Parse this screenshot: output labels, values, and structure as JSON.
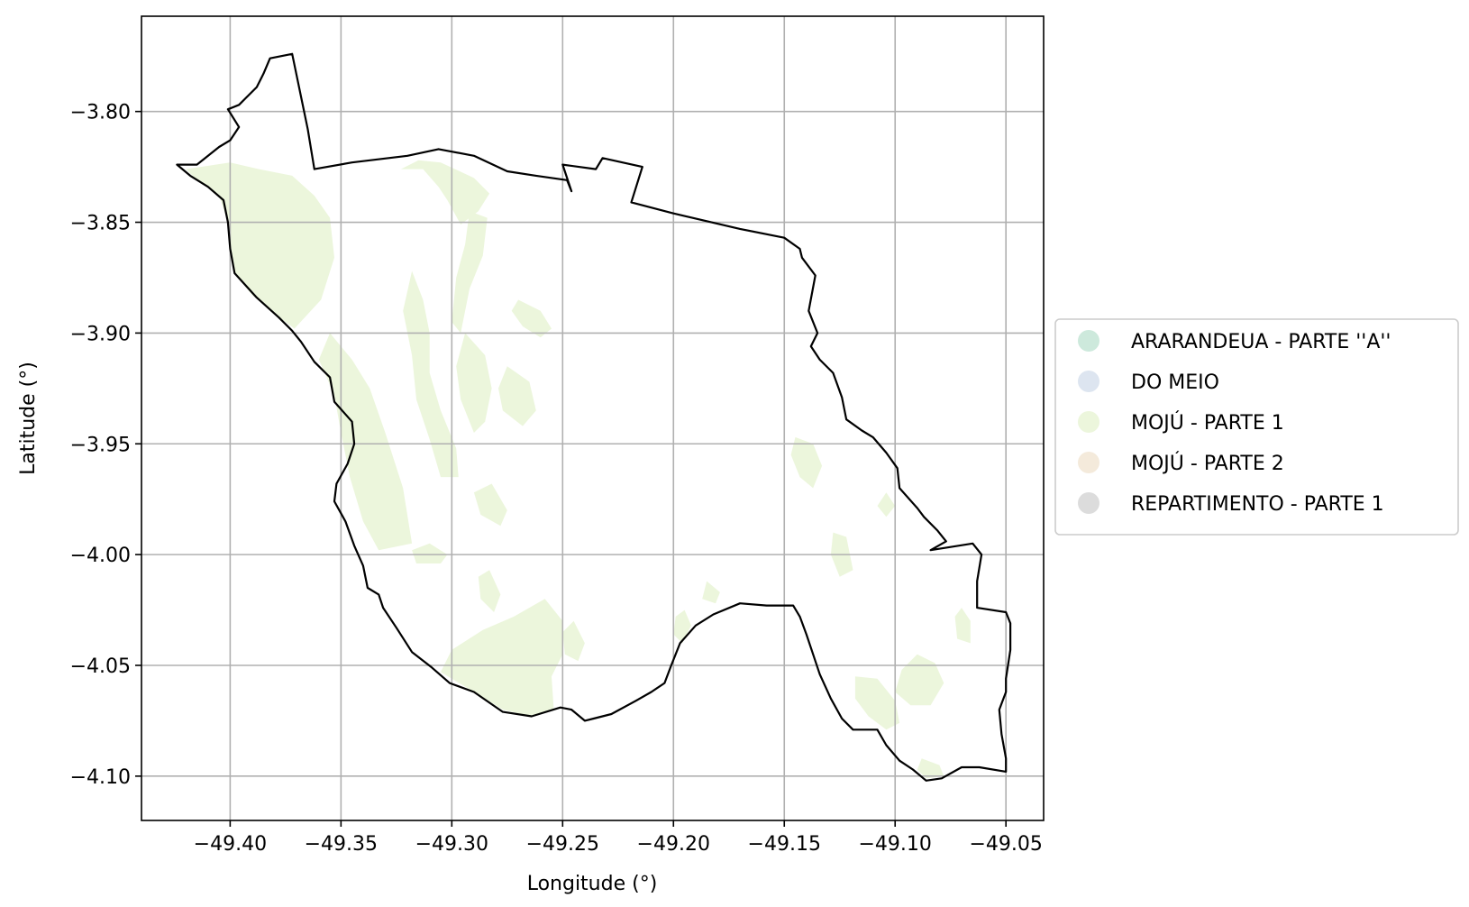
{
  "chart_data": {
    "type": "map",
    "xlabel": "Longitude (°)",
    "ylabel": "Latitude (°)",
    "xlim": [
      -49.44,
      -49.033
    ],
    "ylim": [
      -4.12,
      -3.757
    ],
    "x_ticks": [
      -49.4,
      -49.35,
      -49.3,
      -49.25,
      -49.2,
      -49.15,
      -49.1,
      -49.05
    ],
    "y_ticks": [
      -3.8,
      -3.85,
      -3.9,
      -3.95,
      -4.0,
      -4.05,
      -4.1
    ],
    "x_tick_labels": [
      "−49.40",
      "−49.35",
      "−49.30",
      "−49.25",
      "−49.20",
      "−49.15",
      "−49.10",
      "−49.05"
    ],
    "y_tick_labels": [
      "−3.80",
      "−3.85",
      "−3.90",
      "−3.95",
      "−4.00",
      "−4.05",
      "−4.10"
    ],
    "grid": true,
    "legend_position": "right",
    "legend": [
      {
        "label": "ARARANDEUA - PARTE ''A''",
        "color": "#cde9dc"
      },
      {
        "label": "DO MEIO",
        "color": "#dde5f0"
      },
      {
        "label": "MOJÚ - PARTE 1",
        "color": "#ecf6dc"
      },
      {
        "label": "MOJÚ - PARTE 2",
        "color": "#f4eadb"
      },
      {
        "label": "REPARTIMENTO - PARTE 1",
        "color": "#dcdcdc"
      }
    ],
    "boundary": [
      [
        -49.424,
        -3.824
      ],
      [
        -49.415,
        -3.824
      ],
      [
        -49.405,
        -3.816
      ],
      [
        -49.4,
        -3.813
      ],
      [
        -49.396,
        -3.807
      ],
      [
        -49.401,
        -3.799
      ],
      [
        -49.396,
        -3.797
      ],
      [
        -49.393,
        -3.794
      ],
      [
        -49.388,
        -3.789
      ],
      [
        -49.385,
        -3.783
      ],
      [
        -49.382,
        -3.776
      ],
      [
        -49.372,
        -3.774
      ],
      [
        -49.365,
        -3.808
      ],
      [
        -49.362,
        -3.826
      ],
      [
        -49.345,
        -3.823
      ],
      [
        -49.32,
        -3.82
      ],
      [
        -49.306,
        -3.817
      ],
      [
        -49.29,
        -3.82
      ],
      [
        -49.275,
        -3.827
      ],
      [
        -49.262,
        -3.829
      ],
      [
        -49.248,
        -3.831
      ],
      [
        -49.246,
        -3.836
      ],
      [
        -49.25,
        -3.824
      ],
      [
        -49.235,
        -3.826
      ],
      [
        -49.232,
        -3.821
      ],
      [
        -49.214,
        -3.825
      ],
      [
        -49.219,
        -3.841
      ],
      [
        -49.2,
        -3.846
      ],
      [
        -49.17,
        -3.853
      ],
      [
        -49.15,
        -3.857
      ],
      [
        -49.143,
        -3.862
      ],
      [
        -49.142,
        -3.866
      ],
      [
        -49.136,
        -3.874
      ],
      [
        -49.139,
        -3.89
      ],
      [
        -49.135,
        -3.9
      ],
      [
        -49.138,
        -3.906
      ],
      [
        -49.134,
        -3.912
      ],
      [
        -49.128,
        -3.918
      ],
      [
        -49.124,
        -3.929
      ],
      [
        -49.122,
        -3.939
      ],
      [
        -49.115,
        -3.944
      ],
      [
        -49.11,
        -3.947
      ],
      [
        -49.104,
        -3.954
      ],
      [
        -49.099,
        -3.961
      ],
      [
        -49.098,
        -3.97
      ],
      [
        -49.09,
        -3.979
      ],
      [
        -49.087,
        -3.983
      ],
      [
        -49.081,
        -3.989
      ],
      [
        -49.077,
        -3.994
      ],
      [
        -49.084,
        -3.998
      ],
      [
        -49.065,
        -3.995
      ],
      [
        -49.061,
        -4.0
      ],
      [
        -49.063,
        -4.012
      ],
      [
        -49.063,
        -4.024
      ],
      [
        -49.05,
        -4.026
      ],
      [
        -49.048,
        -4.031
      ],
      [
        -49.048,
        -4.043
      ],
      [
        -49.05,
        -4.056
      ],
      [
        -49.05,
        -4.062
      ],
      [
        -49.053,
        -4.07
      ],
      [
        -49.052,
        -4.081
      ],
      [
        -49.05,
        -4.092
      ],
      [
        -49.05,
        -4.098
      ],
      [
        -49.062,
        -4.096
      ],
      [
        -49.07,
        -4.096
      ],
      [
        -49.079,
        -4.101
      ],
      [
        -49.086,
        -4.102
      ],
      [
        -49.092,
        -4.097
      ],
      [
        -49.098,
        -4.093
      ],
      [
        -49.104,
        -4.086
      ],
      [
        -49.108,
        -4.079
      ],
      [
        -49.119,
        -4.079
      ],
      [
        -49.124,
        -4.074
      ],
      [
        -49.129,
        -4.065
      ],
      [
        -49.134,
        -4.054
      ],
      [
        -49.137,
        -4.045
      ],
      [
        -49.14,
        -4.036
      ],
      [
        -49.143,
        -4.028
      ],
      [
        -49.146,
        -4.023
      ],
      [
        -49.158,
        -4.023
      ],
      [
        -49.17,
        -4.022
      ],
      [
        -49.182,
        -4.027
      ],
      [
        -49.19,
        -4.032
      ],
      [
        -49.197,
        -4.04
      ],
      [
        -49.201,
        -4.05
      ],
      [
        -49.204,
        -4.058
      ],
      [
        -49.21,
        -4.062
      ],
      [
        -49.217,
        -4.066
      ],
      [
        -49.228,
        -4.072
      ],
      [
        -49.236,
        -4.074
      ],
      [
        -49.24,
        -4.075
      ],
      [
        -49.246,
        -4.07
      ],
      [
        -49.251,
        -4.069
      ],
      [
        -49.264,
        -4.073
      ],
      [
        -49.277,
        -4.071
      ],
      [
        -49.29,
        -4.062
      ],
      [
        -49.301,
        -4.058
      ],
      [
        -49.309,
        -4.051
      ],
      [
        -49.318,
        -4.044
      ],
      [
        -49.325,
        -4.033
      ],
      [
        -49.331,
        -4.024
      ],
      [
        -49.333,
        -4.018
      ],
      [
        -49.338,
        -4.015
      ],
      [
        -49.34,
        -4.005
      ],
      [
        -49.344,
        -3.996
      ],
      [
        -49.348,
        -3.985
      ],
      [
        -49.353,
        -3.976
      ],
      [
        -49.352,
        -3.968
      ],
      [
        -49.347,
        -3.959
      ],
      [
        -49.344,
        -3.95
      ],
      [
        -49.345,
        -3.94
      ],
      [
        -49.353,
        -3.931
      ],
      [
        -49.355,
        -3.92
      ],
      [
        -49.362,
        -3.913
      ],
      [
        -49.368,
        -3.904
      ],
      [
        -49.372,
        -3.899
      ],
      [
        -49.378,
        -3.893
      ],
      [
        -49.388,
        -3.884
      ],
      [
        -49.398,
        -3.873
      ],
      [
        -49.4,
        -3.862
      ],
      [
        -49.401,
        -3.85
      ],
      [
        -49.403,
        -3.84
      ],
      [
        -49.41,
        -3.834
      ],
      [
        -49.418,
        -3.829
      ],
      [
        -49.424,
        -3.824
      ]
    ],
    "patches": [
      [
        [
          -49.42,
          -3.826
        ],
        [
          -49.4,
          -3.823
        ],
        [
          -49.387,
          -3.826
        ],
        [
          -49.372,
          -3.829
        ],
        [
          -49.362,
          -3.838
        ],
        [
          -49.355,
          -3.848
        ],
        [
          -49.353,
          -3.866
        ],
        [
          -49.359,
          -3.885
        ],
        [
          -49.371,
          -3.898
        ],
        [
          -49.379,
          -3.892
        ],
        [
          -49.39,
          -3.883
        ],
        [
          -49.398,
          -3.873
        ],
        [
          -49.401,
          -3.85
        ],
        [
          -49.405,
          -3.838
        ],
        [
          -49.415,
          -3.831
        ]
      ],
      [
        [
          -49.355,
          -3.9
        ],
        [
          -49.345,
          -3.912
        ],
        [
          -49.337,
          -3.925
        ],
        [
          -49.33,
          -3.945
        ],
        [
          -49.322,
          -3.97
        ],
        [
          -49.318,
          -3.995
        ],
        [
          -49.333,
          -3.998
        ],
        [
          -49.34,
          -3.985
        ],
        [
          -49.346,
          -3.965
        ],
        [
          -49.35,
          -3.945
        ],
        [
          -49.353,
          -3.928
        ],
        [
          -49.36,
          -3.912
        ]
      ],
      [
        [
          -49.323,
          -3.826
        ],
        [
          -49.313,
          -3.826
        ],
        [
          -49.306,
          -3.834
        ],
        [
          -49.302,
          -3.84
        ],
        [
          -49.296,
          -3.851
        ],
        [
          -49.288,
          -3.845
        ],
        [
          -49.283,
          -3.837
        ],
        [
          -49.29,
          -3.83
        ],
        [
          -49.305,
          -3.823
        ],
        [
          -49.315,
          -3.822
        ]
      ],
      [
        [
          -49.318,
          -3.872
        ],
        [
          -49.313,
          -3.885
        ],
        [
          -49.31,
          -3.9
        ],
        [
          -49.31,
          -3.918
        ],
        [
          -49.305,
          -3.935
        ],
        [
          -49.298,
          -3.952
        ],
        [
          -49.297,
          -3.965
        ],
        [
          -49.305,
          -3.965
        ],
        [
          -49.31,
          -3.948
        ],
        [
          -49.316,
          -3.93
        ],
        [
          -49.318,
          -3.91
        ],
        [
          -49.322,
          -3.89
        ]
      ],
      [
        [
          -49.292,
          -3.845
        ],
        [
          -49.284,
          -3.848
        ],
        [
          -49.286,
          -3.865
        ],
        [
          -49.292,
          -3.88
        ],
        [
          -49.296,
          -3.9
        ],
        [
          -49.3,
          -3.895
        ],
        [
          -49.298,
          -3.875
        ],
        [
          -49.294,
          -3.86
        ]
      ],
      [
        [
          -49.294,
          -3.9
        ],
        [
          -49.285,
          -3.91
        ],
        [
          -49.282,
          -3.925
        ],
        [
          -49.285,
          -3.94
        ],
        [
          -49.29,
          -3.945
        ],
        [
          -49.296,
          -3.93
        ],
        [
          -49.298,
          -3.915
        ]
      ],
      [
        [
          -49.275,
          -3.915
        ],
        [
          -49.265,
          -3.922
        ],
        [
          -49.262,
          -3.935
        ],
        [
          -49.268,
          -3.942
        ],
        [
          -49.277,
          -3.935
        ],
        [
          -49.279,
          -3.925
        ]
      ],
      [
        [
          -49.27,
          -3.885
        ],
        [
          -49.26,
          -3.89
        ],
        [
          -49.255,
          -3.898
        ],
        [
          -49.26,
          -3.902
        ],
        [
          -49.268,
          -3.897
        ],
        [
          -49.273,
          -3.89
        ]
      ],
      [
        [
          -49.282,
          -3.968
        ],
        [
          -49.275,
          -3.98
        ],
        [
          -49.278,
          -3.987
        ],
        [
          -49.287,
          -3.982
        ],
        [
          -49.29,
          -3.972
        ]
      ],
      [
        [
          -49.31,
          -3.995
        ],
        [
          -49.302,
          -4.0
        ],
        [
          -49.305,
          -4.004
        ],
        [
          -49.316,
          -4.004
        ],
        [
          -49.318,
          -3.998
        ]
      ],
      [
        [
          -49.283,
          -4.007
        ],
        [
          -49.278,
          -4.018
        ],
        [
          -49.281,
          -4.026
        ],
        [
          -49.287,
          -4.02
        ],
        [
          -49.288,
          -4.01
        ]
      ],
      [
        [
          -49.258,
          -4.02
        ],
        [
          -49.272,
          -4.028
        ],
        [
          -49.286,
          -4.034
        ],
        [
          -49.3,
          -4.043
        ],
        [
          -49.305,
          -4.053
        ],
        [
          -49.29,
          -4.062
        ],
        [
          -49.277,
          -4.07
        ],
        [
          -49.264,
          -4.073
        ],
        [
          -49.254,
          -4.07
        ],
        [
          -49.255,
          -4.055
        ],
        [
          -49.25,
          -4.045
        ],
        [
          -49.25,
          -4.03
        ]
      ],
      [
        [
          -49.245,
          -4.03
        ],
        [
          -49.24,
          -4.04
        ],
        [
          -49.243,
          -4.048
        ],
        [
          -49.249,
          -4.045
        ],
        [
          -49.25,
          -4.035
        ]
      ],
      [
        [
          -49.195,
          -4.025
        ],
        [
          -49.192,
          -4.032
        ],
        [
          -49.196,
          -4.04
        ],
        [
          -49.2,
          -4.036
        ],
        [
          -49.199,
          -4.028
        ]
      ],
      [
        [
          -49.128,
          -3.99
        ],
        [
          -49.122,
          -3.992
        ],
        [
          -49.119,
          -4.007
        ],
        [
          -49.125,
          -4.01
        ],
        [
          -49.129,
          -4.0
        ]
      ],
      [
        [
          -49.145,
          -3.947
        ],
        [
          -49.137,
          -3.95
        ],
        [
          -49.133,
          -3.96
        ],
        [
          -49.137,
          -3.97
        ],
        [
          -49.143,
          -3.965
        ],
        [
          -49.147,
          -3.955
        ]
      ],
      [
        [
          -49.118,
          -4.055
        ],
        [
          -49.108,
          -4.056
        ],
        [
          -49.1,
          -4.066
        ],
        [
          -49.098,
          -4.076
        ],
        [
          -49.104,
          -4.079
        ],
        [
          -49.112,
          -4.073
        ],
        [
          -49.118,
          -4.065
        ]
      ],
      [
        [
          -49.09,
          -4.045
        ],
        [
          -49.082,
          -4.049
        ],
        [
          -49.078,
          -4.058
        ],
        [
          -49.084,
          -4.068
        ],
        [
          -49.093,
          -4.068
        ],
        [
          -49.1,
          -4.062
        ],
        [
          -49.097,
          -4.052
        ]
      ],
      [
        [
          -49.07,
          -4.024
        ],
        [
          -49.066,
          -4.03
        ],
        [
          -49.066,
          -4.04
        ],
        [
          -49.072,
          -4.038
        ],
        [
          -49.073,
          -4.028
        ]
      ],
      [
        [
          -49.088,
          -4.092
        ],
        [
          -49.08,
          -4.095
        ],
        [
          -49.078,
          -4.1
        ],
        [
          -49.086,
          -4.101
        ],
        [
          -49.09,
          -4.097
        ]
      ],
      [
        [
          -49.185,
          -4.012
        ],
        [
          -49.179,
          -4.017
        ],
        [
          -49.181,
          -4.022
        ],
        [
          -49.187,
          -4.02
        ]
      ],
      [
        [
          -49.104,
          -3.972
        ],
        [
          -49.1,
          -3.978
        ],
        [
          -49.104,
          -3.983
        ],
        [
          -49.108,
          -3.978
        ]
      ]
    ],
    "patch_color": "#ecf6dc"
  }
}
